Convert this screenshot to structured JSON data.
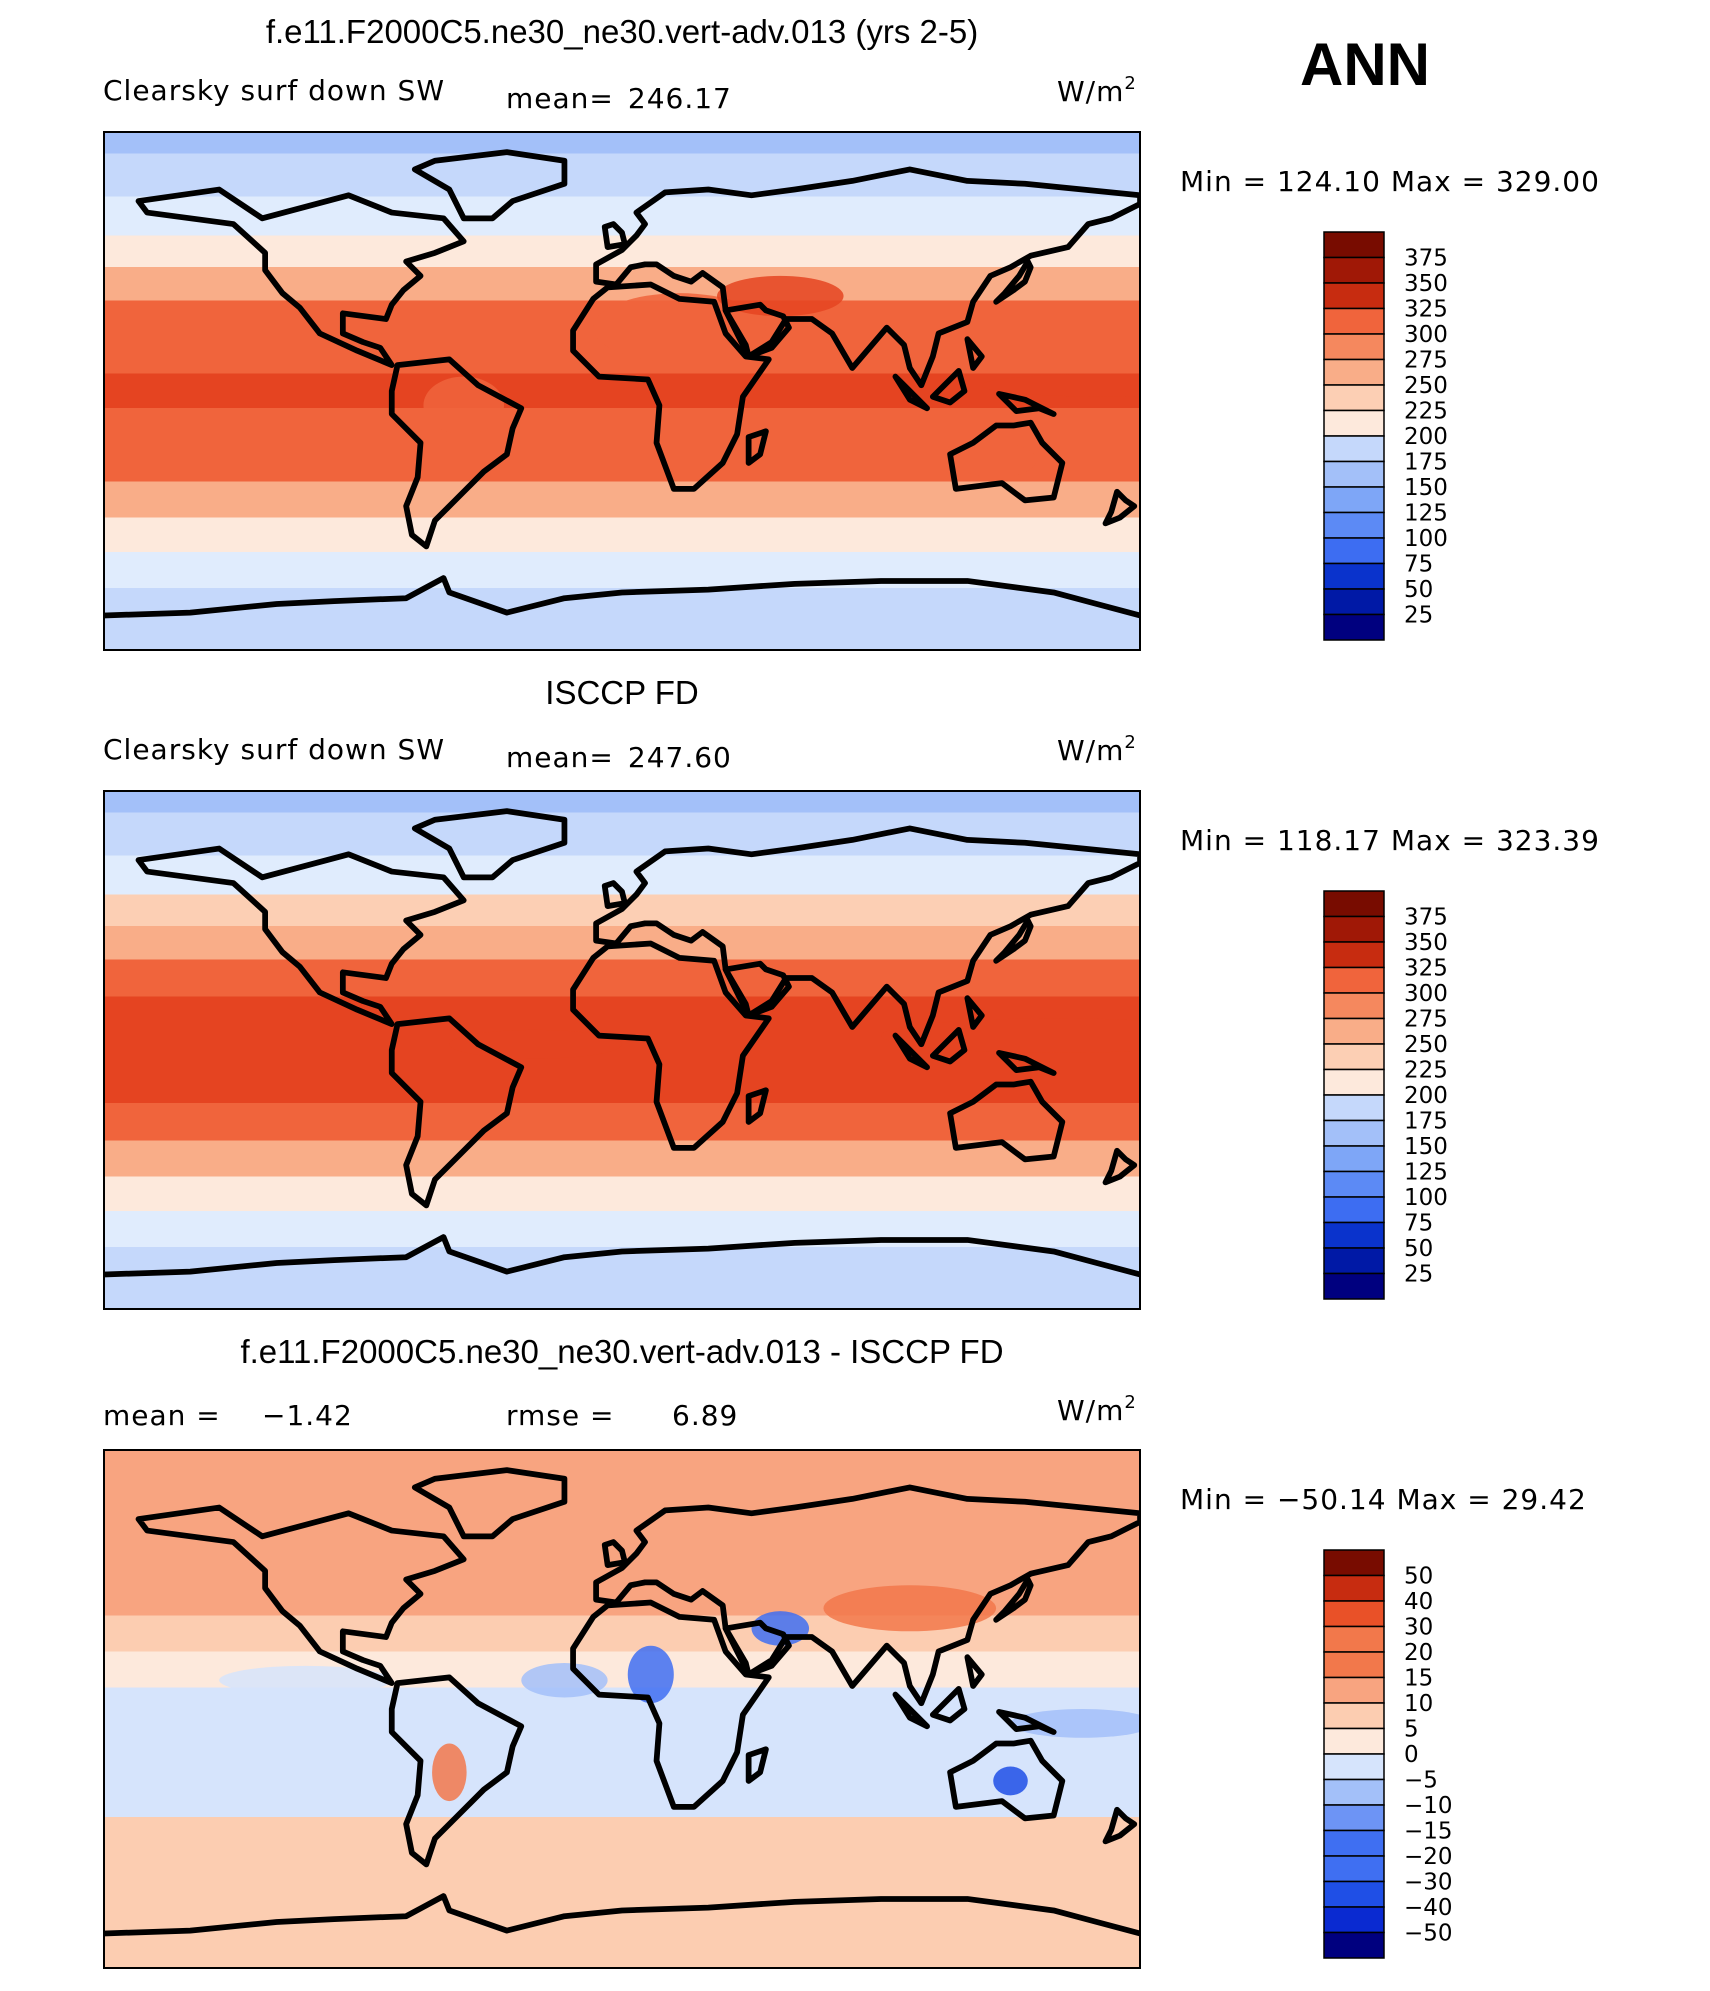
{
  "season": "ANN",
  "units": "W/m",
  "units_sup": "2",
  "colors": {
    "abs": [
      "#00007f",
      "#0019a6",
      "#0a33cc",
      "#1f4fe6",
      "#3d6df2",
      "#5c8af5",
      "#7ea6f7",
      "#a3c0f9",
      "#c5d8fb",
      "#e0ecfd",
      "#fde9dc",
      "#fccfb4",
      "#f9ad88",
      "#f5885e",
      "#f0643c",
      "#e54421",
      "#c72c10",
      "#a01806",
      "#780c00"
    ],
    "diff": [
      "#00007f",
      "#0a2ad1",
      "#1f4fe6",
      "#3f6ff2",
      "#6d94f5",
      "#a3c0f9",
      "#d6e4fc",
      "#fde9dc",
      "#fccdb1",
      "#f8a480",
      "#f2784b",
      "#e95128",
      "#c72c10",
      "#780c00"
    ]
  },
  "chart_data": [
    {
      "type": "heatmap",
      "name": "model",
      "title": "f.e11.F2000C5.ne30_ne30.vert-adv.013 (yrs 2-5)",
      "left_label": "Clearsky surf down SW",
      "mean_label": "mean=",
      "mean": "246.17",
      "min_max": "Min = 124.10 Max = 329.00",
      "colorbar_ticks": [
        "375",
        "350",
        "325",
        "300",
        "275",
        "250",
        "225",
        "200",
        "175",
        "150",
        "125",
        "100",
        "75",
        "50",
        "25"
      ],
      "ymid": 0.485,
      "lat_bands": [
        {
          "lat": 90,
          "v": 125
        },
        {
          "lat": 75,
          "v": 140
        },
        {
          "lat": 60,
          "v": 165
        },
        {
          "lat": 48,
          "v": 200
        },
        {
          "lat": 38,
          "v": 245
        },
        {
          "lat": 25,
          "v": 280
        },
        {
          "lat": 12,
          "v": 300
        },
        {
          "lat": 0,
          "v": 310
        },
        {
          "lat": -12,
          "v": 300
        },
        {
          "lat": -25,
          "v": 280
        },
        {
          "lat": -38,
          "v": 240
        },
        {
          "lat": -50,
          "v": 190
        },
        {
          "lat": -62,
          "v": 160
        },
        {
          "lat": -75,
          "v": 140
        },
        {
          "lat": -90,
          "v": 130
        }
      ],
      "blobs": [
        {
          "lon": 20,
          "lat": 22,
          "rx": 30,
          "ry": 12,
          "v": 285
        },
        {
          "lon": 55,
          "lat": 33,
          "rx": 22,
          "ry": 7,
          "v": 320
        },
        {
          "lon": 170,
          "lat": 2,
          "rx": 45,
          "ry": 4,
          "v": 318
        },
        {
          "lon": -55,
          "lat": -5,
          "rx": 14,
          "ry": 10,
          "v": 290
        },
        {
          "lon": 130,
          "lat": -24,
          "rx": 14,
          "ry": 6,
          "v": 285
        }
      ]
    },
    {
      "type": "heatmap",
      "name": "obs",
      "title": "ISCCP FD",
      "left_label": "Clearsky surf down SW",
      "mean_label": "mean=",
      "mean": "247.60",
      "min_max": "Min = 118.17 Max = 323.39",
      "colorbar_ticks": [
        "375",
        "350",
        "325",
        "300",
        "275",
        "250",
        "225",
        "200",
        "175",
        "150",
        "125",
        "100",
        "75",
        "50",
        "25"
      ],
      "ymid": 0.485,
      "lat_bands": [
        {
          "lat": 90,
          "v": 115
        },
        {
          "lat": 75,
          "v": 140
        },
        {
          "lat": 60,
          "v": 170
        },
        {
          "lat": 48,
          "v": 205
        },
        {
          "lat": 38,
          "v": 245
        },
        {
          "lat": 25,
          "v": 282
        },
        {
          "lat": 12,
          "v": 305
        },
        {
          "lat": 0,
          "v": 312
        },
        {
          "lat": -12,
          "v": 305
        },
        {
          "lat": -25,
          "v": 282
        },
        {
          "lat": -38,
          "v": 240
        },
        {
          "lat": -50,
          "v": 190
        },
        {
          "lat": -62,
          "v": 160
        },
        {
          "lat": -75,
          "v": 140
        },
        {
          "lat": -90,
          "v": 135
        }
      ],
      "blobs": [
        {
          "lon": 150,
          "lat": 5,
          "rx": 60,
          "ry": 6,
          "v": 318
        },
        {
          "lon": -30,
          "lat": 2,
          "rx": 30,
          "ry": 5,
          "v": 316
        }
      ]
    },
    {
      "type": "heatmap",
      "name": "diff",
      "title": "f.e11.F2000C5.ne30_ne30.vert-adv.013 - ISCCP FD",
      "left_label": "mean =",
      "mean": "−1.42",
      "rmse_label": "rmse =",
      "rmse": "6.89",
      "min_max": "Min = −50.14 Max =   29.42",
      "colorbar_ticks": [
        "50",
        "40",
        "30",
        "20",
        "15",
        "10",
        "5",
        "0",
        "−5",
        "−10",
        "−15",
        "−20",
        "−30",
        "−40",
        "−50"
      ],
      "ymid": 0.5,
      "lat_bands": [
        {
          "lat": 90,
          "v": 8
        },
        {
          "lat": 60,
          "v": 7
        },
        {
          "lat": 40,
          "v": 8
        },
        {
          "lat": 25,
          "v": 5
        },
        {
          "lat": 15,
          "v": -3
        },
        {
          "lat": 0,
          "v": -7
        },
        {
          "lat": -15,
          "v": -8
        },
        {
          "lat": -30,
          "v": -6
        },
        {
          "lat": -45,
          "v": 2
        },
        {
          "lat": -60,
          "v": 3
        },
        {
          "lat": -75,
          "v": 4
        },
        {
          "lat": -90,
          "v": 3
        }
      ],
      "blobs": [
        {
          "lon": 55,
          "lat": 28,
          "rx": 10,
          "ry": 6,
          "v": -25
        },
        {
          "lon": 10,
          "lat": 12,
          "rx": 8,
          "ry": 10,
          "v": -20
        },
        {
          "lon": 135,
          "lat": -25,
          "rx": 6,
          "ry": 5,
          "v": -35
        },
        {
          "lon": 160,
          "lat": -5,
          "rx": 25,
          "ry": 5,
          "v": -12
        },
        {
          "lon": 100,
          "lat": 35,
          "rx": 30,
          "ry": 8,
          "v": 12
        },
        {
          "lon": -60,
          "lat": -22,
          "rx": 6,
          "ry": 10,
          "v": 14
        },
        {
          "lon": -110,
          "lat": 10,
          "rx": 30,
          "ry": 5,
          "v": -9
        },
        {
          "lon": -20,
          "lat": 10,
          "rx": 15,
          "ry": 6,
          "v": -12
        }
      ]
    }
  ]
}
